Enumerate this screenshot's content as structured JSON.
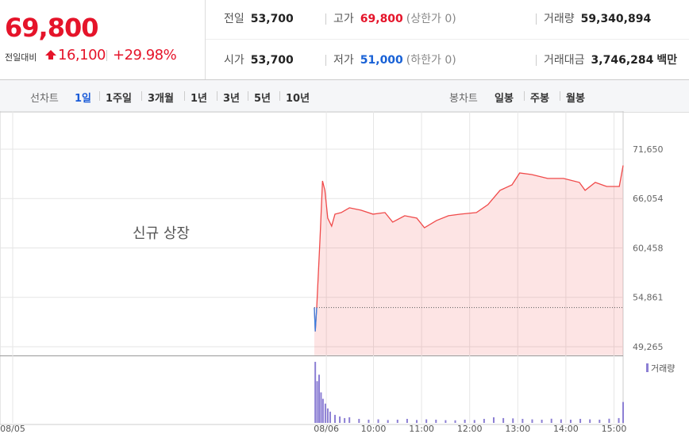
{
  "quote": {
    "price": "69,800",
    "change_label": "전일대비",
    "change": "16,100",
    "change_rate": "+29.98%",
    "color": "#e5142a"
  },
  "summary": {
    "rows": [
      [
        {
          "label": "전일",
          "value": "53,700"
        },
        {
          "label": "고가",
          "value": "69,800",
          "note": "(상한가 0)",
          "color": "#e5142a"
        },
        {
          "label": "거래량",
          "value": "59,340,894"
        }
      ],
      [
        {
          "label": "시가",
          "value": "53,700"
        },
        {
          "label": "저가",
          "value": "51,000",
          "note": "(하한가 0)",
          "color": "#1861d6"
        },
        {
          "label": "거래대금",
          "value": "3,746,284",
          "unit": "백만"
        }
      ]
    ]
  },
  "toolbar": {
    "line_label": "선차트",
    "periods": [
      "1일",
      "1주일",
      "3개월",
      "1년",
      "3년",
      "5년",
      "10년"
    ],
    "candle_label": "봉차트",
    "candles": [
      "일봉",
      "주봉",
      "월봉"
    ]
  },
  "chart_data": {
    "type": "line",
    "annotation": "신규 상장",
    "x": [
      6.27,
      6.29,
      6.32,
      6.39,
      6.44,
      6.49,
      6.55,
      6.63,
      6.7,
      6.83,
      7.0,
      7.24,
      7.49,
      7.74,
      7.9,
      8.15,
      8.4,
      8.56,
      8.81,
      9.06,
      9.31,
      9.64,
      9.88,
      10.13,
      10.38,
      10.54,
      10.79,
      11.12,
      11.45,
      11.78,
      11.9,
      12.11,
      12.35,
      12.61,
      12.69
    ],
    "series": [
      {
        "name": "가격",
        "color": "#f04a4a",
        "values": [
          53700,
          51000,
          53700,
          61580,
          68050,
          66980,
          63830,
          62930,
          64280,
          64460,
          65000,
          64730,
          64280,
          64460,
          63380,
          64100,
          63830,
          62750,
          63560,
          64100,
          64280,
          64460,
          65360,
          66980,
          67600,
          68950,
          68770,
          68330,
          68330,
          67880,
          66980,
          67880,
          67420,
          67420,
          69800
        ]
      }
    ],
    "reference": 53700,
    "xlim": [
      -0.264,
      12.69
    ],
    "xticks": [
      {
        "value": 0,
        "label": "08/05"
      },
      {
        "value": 6.52,
        "label": "08/06"
      },
      {
        "value": 7.5,
        "label": "10:00"
      },
      {
        "value": 8.5,
        "label": "11:00"
      },
      {
        "value": 9.5,
        "label": "12:00"
      },
      {
        "value": 10.5,
        "label": "13:00"
      },
      {
        "value": 11.5,
        "label": "14:00"
      },
      {
        "value": 12.5,
        "label": "15:00"
      }
    ],
    "ylim": [
      48300,
      74900
    ],
    "yticks": [
      {
        "value": 71650,
        "label": "71,650"
      },
      {
        "value": 66054,
        "label": "66,054"
      },
      {
        "value": 60458,
        "label": "60,458"
      },
      {
        "value": 54861,
        "label": "54,861"
      },
      {
        "value": 49265,
        "label": "49,265"
      }
    ],
    "grid": true,
    "volume": {
      "name": "거래량",
      "color": "#8c7fd4",
      "ylim": [
        0,
        4000000
      ],
      "x": [
        6.29,
        6.33,
        6.37,
        6.41,
        6.45,
        6.5,
        6.55,
        6.6,
        6.7,
        6.8,
        6.9,
        7.0,
        7.2,
        7.4,
        7.6,
        7.8,
        8.0,
        8.2,
        8.4,
        8.6,
        8.8,
        9.0,
        9.2,
        9.4,
        9.6,
        9.8,
        10.0,
        10.2,
        10.4,
        10.6,
        10.8,
        11.0,
        11.2,
        11.4,
        11.6,
        11.8,
        12.0,
        12.2,
        12.4,
        12.6,
        12.69
      ],
      "values": [
        3800000,
        2600000,
        3000000,
        1900000,
        1500000,
        1200000,
        900000,
        700000,
        500000,
        400000,
        300000,
        350000,
        250000,
        200000,
        220000,
        180000,
        200000,
        250000,
        180000,
        220000,
        200000,
        170000,
        160000,
        200000,
        180000,
        250000,
        350000,
        300000,
        280000,
        250000,
        220000,
        200000,
        260000,
        220000,
        200000,
        250000,
        220000,
        200000,
        260000,
        300000,
        1300000
      ]
    }
  }
}
